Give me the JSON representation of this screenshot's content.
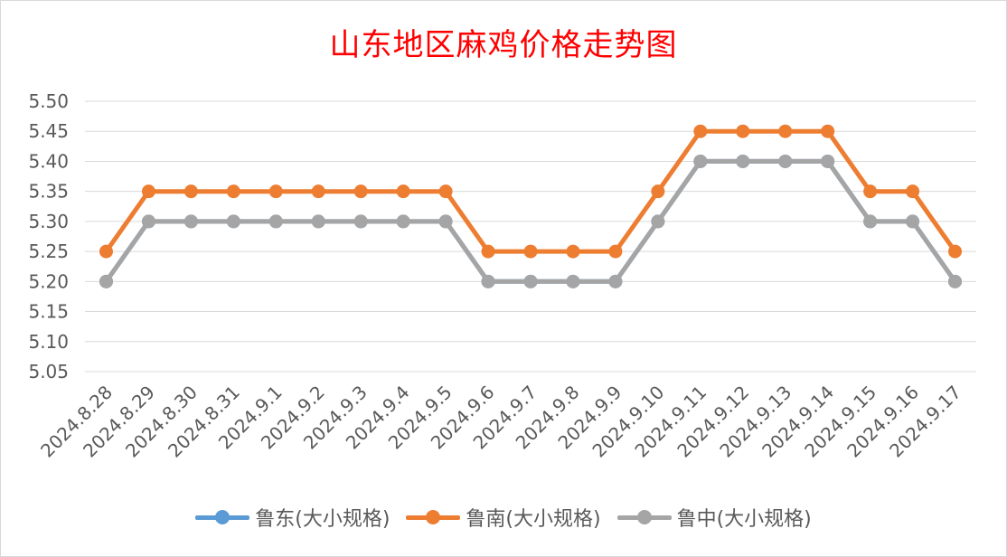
{
  "chart_data": {
    "type": "line",
    "title": "山东地区麻鸡价格走势图",
    "xlabel": "",
    "ylabel": "",
    "ylim": [
      5.05,
      5.5
    ],
    "yticks": [
      "5.50",
      "5.45",
      "5.40",
      "5.35",
      "5.30",
      "5.25",
      "5.20",
      "5.15",
      "5.10",
      "5.05"
    ],
    "grid": true,
    "legend_position": "bottom",
    "categories": [
      "2024.8.28",
      "2024.8.29",
      "2024.8.30",
      "2024.8.31",
      "2024.9.1",
      "2024.9.2",
      "2024.9.3",
      "2024.9.4",
      "2024.9.5",
      "2024.9.6",
      "2024.9.7",
      "2024.9.8",
      "2024.9.9",
      "2024.9.10",
      "2024.9.11",
      "2024.9.12",
      "2024.9.13",
      "2024.9.14",
      "2024.9.15",
      "2024.9.16",
      "2024.9.17"
    ],
    "series": [
      {
        "name": "鲁东(大小规格)",
        "color": "#5b9bd5",
        "values": [
          5.2,
          5.3,
          5.3,
          5.3,
          5.3,
          5.3,
          5.3,
          5.3,
          5.3,
          5.2,
          5.2,
          5.2,
          5.2,
          5.3,
          5.4,
          5.4,
          5.4,
          5.4,
          5.3,
          5.3,
          5.2
        ]
      },
      {
        "name": "鲁南(大小规格)",
        "color": "#ed7d31",
        "values": [
          5.25,
          5.35,
          5.35,
          5.35,
          5.35,
          5.35,
          5.35,
          5.35,
          5.35,
          5.25,
          5.25,
          5.25,
          5.25,
          5.35,
          5.45,
          5.45,
          5.45,
          5.45,
          5.35,
          5.35,
          5.25
        ]
      },
      {
        "name": "鲁中(大小规格)",
        "color": "#a5a5a5",
        "values": [
          5.2,
          5.3,
          5.3,
          5.3,
          5.3,
          5.3,
          5.3,
          5.3,
          5.3,
          5.2,
          5.2,
          5.2,
          5.2,
          5.3,
          5.4,
          5.4,
          5.4,
          5.4,
          5.3,
          5.3,
          5.2
        ]
      }
    ]
  }
}
